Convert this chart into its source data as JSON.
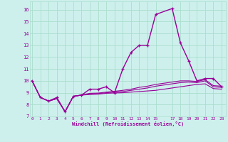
{
  "title": "",
  "xlabel": "Windchill (Refroidissement éolien,°C)",
  "bg_color": "#cdf0ed",
  "line_color": "#990099",
  "grid_color": "#aaddcc",
  "x_ticks": [
    0,
    1,
    2,
    3,
    4,
    5,
    6,
    7,
    8,
    9,
    10,
    11,
    12,
    13,
    14,
    15,
    17,
    18,
    19,
    20,
    21,
    22,
    23
  ],
  "y_ticks": [
    7,
    8,
    9,
    10,
    11,
    12,
    13,
    14,
    15,
    16
  ],
  "xlim": [
    -0.3,
    23.5
  ],
  "ylim": [
    7.0,
    16.7
  ],
  "series": [
    {
      "x": [
        0,
        1,
        2,
        3,
        4,
        5,
        6,
        7,
        8,
        9,
        10,
        11,
        12,
        13,
        14,
        15,
        17,
        18,
        19,
        20,
        21,
        22,
        23
      ],
      "y": [
        10.0,
        8.6,
        8.3,
        8.6,
        7.4,
        8.7,
        8.8,
        9.3,
        9.3,
        9.5,
        9.0,
        11.0,
        12.4,
        13.0,
        13.0,
        15.6,
        16.1,
        13.2,
        11.7,
        10.0,
        10.2,
        10.2,
        9.5
      ],
      "color": "#990099",
      "lw": 1.0,
      "marker": "+"
    },
    {
      "x": [
        0,
        1,
        2,
        3,
        4,
        5,
        6,
        7,
        8,
        9,
        10,
        11,
        12,
        13,
        14,
        15,
        17,
        18,
        19,
        20,
        21,
        22,
        23
      ],
      "y": [
        10.0,
        8.6,
        8.3,
        8.5,
        7.4,
        8.7,
        8.8,
        8.85,
        8.88,
        8.95,
        8.98,
        9.0,
        9.05,
        9.1,
        9.15,
        9.2,
        9.4,
        9.5,
        9.6,
        9.7,
        9.75,
        9.35,
        9.3
      ],
      "color": "#990099",
      "lw": 0.8,
      "marker": null
    },
    {
      "x": [
        0,
        1,
        2,
        3,
        4,
        5,
        6,
        7,
        8,
        9,
        10,
        11,
        12,
        13,
        14,
        15,
        17,
        18,
        19,
        20,
        21,
        22,
        23
      ],
      "y": [
        10.0,
        8.6,
        8.3,
        8.5,
        7.4,
        8.7,
        8.8,
        8.9,
        8.92,
        9.0,
        9.05,
        9.1,
        9.2,
        9.3,
        9.4,
        9.55,
        9.75,
        9.85,
        9.9,
        9.85,
        10.0,
        9.5,
        9.45
      ],
      "color": "#990099",
      "lw": 0.8,
      "marker": null
    },
    {
      "x": [
        0,
        1,
        2,
        3,
        4,
        5,
        6,
        7,
        8,
        9,
        10,
        11,
        12,
        13,
        14,
        15,
        17,
        18,
        19,
        20,
        21,
        22,
        23
      ],
      "y": [
        10.0,
        8.6,
        8.3,
        8.5,
        7.4,
        8.7,
        8.8,
        8.95,
        8.97,
        9.05,
        9.12,
        9.2,
        9.3,
        9.45,
        9.55,
        9.7,
        9.9,
        10.0,
        10.0,
        9.95,
        10.1,
        9.6,
        9.55
      ],
      "color": "#990099",
      "lw": 0.8,
      "marker": null
    }
  ]
}
